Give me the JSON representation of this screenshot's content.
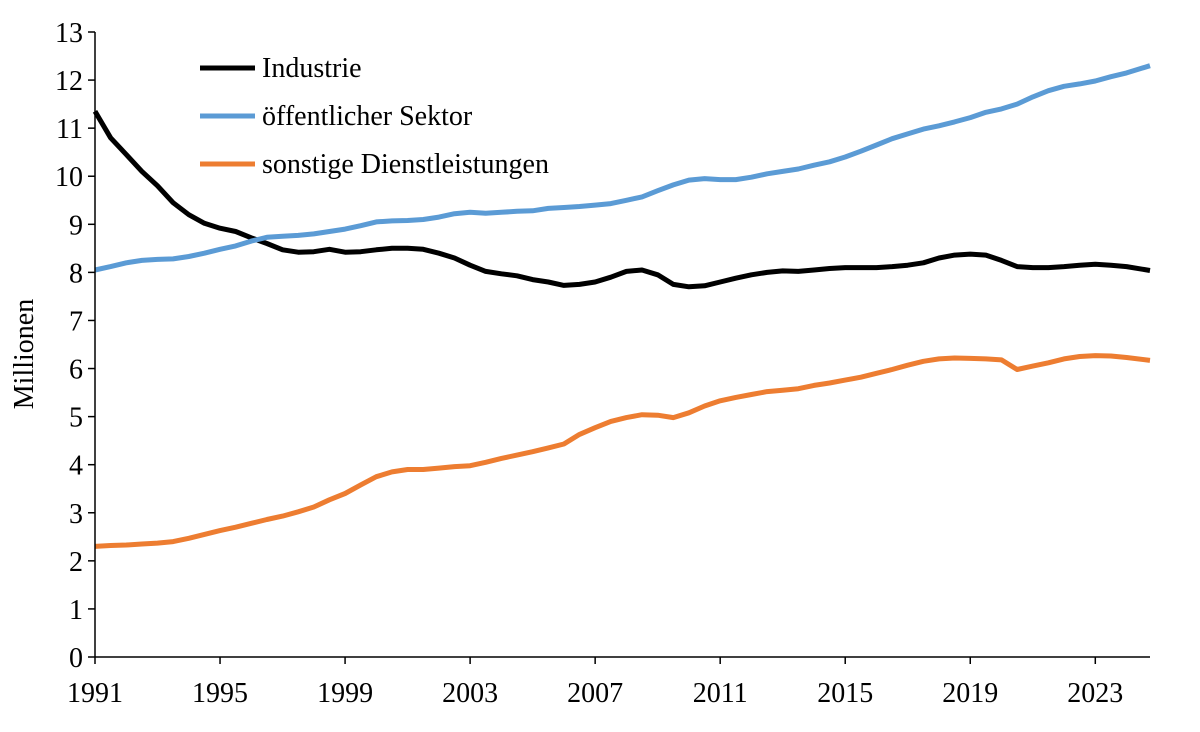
{
  "chart_data": {
    "type": "line",
    "title": "",
    "xlabel": "",
    "ylabel": "Millionen",
    "xlim": [
      1991,
      2024.75
    ],
    "ylim": [
      0,
      13
    ],
    "x_ticks": [
      1991,
      1995,
      1999,
      2003,
      2007,
      2011,
      2015,
      2019,
      2023
    ],
    "y_ticks": [
      0,
      1,
      2,
      3,
      4,
      5,
      6,
      7,
      8,
      9,
      10,
      11,
      12,
      13
    ],
    "grid": false,
    "legend_position": "top-left",
    "series": [
      {
        "name": "Industrie",
        "color": "#000000",
        "points": [
          [
            1991,
            11.35
          ],
          [
            1991.5,
            10.8
          ],
          [
            1992,
            10.45
          ],
          [
            1992.5,
            10.1
          ],
          [
            1993,
            9.8
          ],
          [
            1993.5,
            9.45
          ],
          [
            1994,
            9.2
          ],
          [
            1994.5,
            9.02
          ],
          [
            1995,
            8.92
          ],
          [
            1995.5,
            8.85
          ],
          [
            1996,
            8.72
          ],
          [
            1996.5,
            8.6
          ],
          [
            1997,
            8.47
          ],
          [
            1997.5,
            8.42
          ],
          [
            1998,
            8.43
          ],
          [
            1998.5,
            8.48
          ],
          [
            1999,
            8.42
          ],
          [
            1999.5,
            8.43
          ],
          [
            2000,
            8.47
          ],
          [
            2000.5,
            8.5
          ],
          [
            2001,
            8.5
          ],
          [
            2001.5,
            8.48
          ],
          [
            2002,
            8.4
          ],
          [
            2002.5,
            8.3
          ],
          [
            2003,
            8.15
          ],
          [
            2003.5,
            8.02
          ],
          [
            2004,
            7.97
          ],
          [
            2004.5,
            7.93
          ],
          [
            2005,
            7.85
          ],
          [
            2005.5,
            7.8
          ],
          [
            2006,
            7.73
          ],
          [
            2006.5,
            7.75
          ],
          [
            2007,
            7.8
          ],
          [
            2007.5,
            7.9
          ],
          [
            2008,
            8.02
          ],
          [
            2008.5,
            8.05
          ],
          [
            2009,
            7.95
          ],
          [
            2009.5,
            7.75
          ],
          [
            2010,
            7.7
          ],
          [
            2010.5,
            7.72
          ],
          [
            2011,
            7.8
          ],
          [
            2011.5,
            7.88
          ],
          [
            2012,
            7.95
          ],
          [
            2012.5,
            8.0
          ],
          [
            2013,
            8.03
          ],
          [
            2013.5,
            8.02
          ],
          [
            2014,
            8.05
          ],
          [
            2014.5,
            8.08
          ],
          [
            2015,
            8.1
          ],
          [
            2015.5,
            8.1
          ],
          [
            2016,
            8.1
          ],
          [
            2016.5,
            8.12
          ],
          [
            2017,
            8.15
          ],
          [
            2017.5,
            8.2
          ],
          [
            2018,
            8.3
          ],
          [
            2018.5,
            8.36
          ],
          [
            2019,
            8.38
          ],
          [
            2019.5,
            8.36
          ],
          [
            2020,
            8.25
          ],
          [
            2020.5,
            8.12
          ],
          [
            2021,
            8.1
          ],
          [
            2021.5,
            8.1
          ],
          [
            2022,
            8.12
          ],
          [
            2022.5,
            8.15
          ],
          [
            2023,
            8.17
          ],
          [
            2023.5,
            8.15
          ],
          [
            2024,
            8.12
          ],
          [
            2024.75,
            8.04
          ]
        ]
      },
      {
        "name": "öffentlicher Sektor",
        "color": "#5b9bd5",
        "points": [
          [
            1991,
            8.05
          ],
          [
            1991.5,
            8.12
          ],
          [
            1992,
            8.2
          ],
          [
            1992.5,
            8.25
          ],
          [
            1993,
            8.27
          ],
          [
            1993.5,
            8.28
          ],
          [
            1994,
            8.33
          ],
          [
            1994.5,
            8.4
          ],
          [
            1995,
            8.48
          ],
          [
            1995.5,
            8.55
          ],
          [
            1996,
            8.65
          ],
          [
            1996.5,
            8.73
          ],
          [
            1997,
            8.75
          ],
          [
            1997.5,
            8.77
          ],
          [
            1998,
            8.8
          ],
          [
            1998.5,
            8.85
          ],
          [
            1999,
            8.9
          ],
          [
            1999.5,
            8.97
          ],
          [
            2000,
            9.05
          ],
          [
            2000.5,
            9.07
          ],
          [
            2001,
            9.08
          ],
          [
            2001.5,
            9.1
          ],
          [
            2002,
            9.15
          ],
          [
            2002.5,
            9.22
          ],
          [
            2003,
            9.25
          ],
          [
            2003.5,
            9.23
          ],
          [
            2004,
            9.25
          ],
          [
            2004.5,
            9.27
          ],
          [
            2005,
            9.28
          ],
          [
            2005.5,
            9.33
          ],
          [
            2006,
            9.35
          ],
          [
            2006.5,
            9.37
          ],
          [
            2007,
            9.4
          ],
          [
            2007.5,
            9.43
          ],
          [
            2008,
            9.5
          ],
          [
            2008.5,
            9.57
          ],
          [
            2009,
            9.7
          ],
          [
            2009.5,
            9.82
          ],
          [
            2010,
            9.92
          ],
          [
            2010.5,
            9.95
          ],
          [
            2011,
            9.93
          ],
          [
            2011.5,
            9.93
          ],
          [
            2012,
            9.98
          ],
          [
            2012.5,
            10.05
          ],
          [
            2013,
            10.1
          ],
          [
            2013.5,
            10.15
          ],
          [
            2014,
            10.23
          ],
          [
            2014.5,
            10.3
          ],
          [
            2015,
            10.4
          ],
          [
            2015.5,
            10.52
          ],
          [
            2016,
            10.65
          ],
          [
            2016.5,
            10.78
          ],
          [
            2017,
            10.88
          ],
          [
            2017.5,
            10.98
          ],
          [
            2018,
            11.05
          ],
          [
            2018.5,
            11.13
          ],
          [
            2019,
            11.22
          ],
          [
            2019.5,
            11.33
          ],
          [
            2020,
            11.4
          ],
          [
            2020.5,
            11.5
          ],
          [
            2021,
            11.65
          ],
          [
            2021.5,
            11.78
          ],
          [
            2022,
            11.87
          ],
          [
            2022.5,
            11.92
          ],
          [
            2023,
            11.98
          ],
          [
            2023.5,
            12.07
          ],
          [
            2024,
            12.15
          ],
          [
            2024.75,
            12.3
          ]
        ]
      },
      {
        "name": "sonstige Dienstleistungen",
        "color": "#ed7d31",
        "points": [
          [
            1991,
            2.3
          ],
          [
            1991.5,
            2.32
          ],
          [
            1992,
            2.33
          ],
          [
            1992.5,
            2.35
          ],
          [
            1993,
            2.37
          ],
          [
            1993.5,
            2.4
          ],
          [
            1994,
            2.47
          ],
          [
            1994.5,
            2.55
          ],
          [
            1995,
            2.63
          ],
          [
            1995.5,
            2.7
          ],
          [
            1996,
            2.78
          ],
          [
            1996.5,
            2.86
          ],
          [
            1997,
            2.93
          ],
          [
            1997.5,
            3.02
          ],
          [
            1998,
            3.12
          ],
          [
            1998.5,
            3.27
          ],
          [
            1999,
            3.4
          ],
          [
            1999.5,
            3.58
          ],
          [
            2000,
            3.75
          ],
          [
            2000.5,
            3.85
          ],
          [
            2001,
            3.9
          ],
          [
            2001.5,
            3.9
          ],
          [
            2002,
            3.93
          ],
          [
            2002.5,
            3.96
          ],
          [
            2003,
            3.98
          ],
          [
            2003.5,
            4.05
          ],
          [
            2004,
            4.13
          ],
          [
            2004.5,
            4.2
          ],
          [
            2005,
            4.27
          ],
          [
            2005.5,
            4.35
          ],
          [
            2006,
            4.43
          ],
          [
            2006.5,
            4.63
          ],
          [
            2007,
            4.77
          ],
          [
            2007.5,
            4.9
          ],
          [
            2008,
            4.98
          ],
          [
            2008.5,
            5.04
          ],
          [
            2009,
            5.03
          ],
          [
            2009.5,
            4.98
          ],
          [
            2010,
            5.08
          ],
          [
            2010.5,
            5.22
          ],
          [
            2011,
            5.33
          ],
          [
            2011.5,
            5.4
          ],
          [
            2012,
            5.46
          ],
          [
            2012.5,
            5.52
          ],
          [
            2013,
            5.55
          ],
          [
            2013.5,
            5.58
          ],
          [
            2014,
            5.65
          ],
          [
            2014.5,
            5.7
          ],
          [
            2015,
            5.76
          ],
          [
            2015.5,
            5.82
          ],
          [
            2016,
            5.9
          ],
          [
            2016.5,
            5.98
          ],
          [
            2017,
            6.07
          ],
          [
            2017.5,
            6.15
          ],
          [
            2018,
            6.2
          ],
          [
            2018.5,
            6.22
          ],
          [
            2019,
            6.21
          ],
          [
            2019.5,
            6.2
          ],
          [
            2020,
            6.18
          ],
          [
            2020.5,
            5.98
          ],
          [
            2021,
            6.05
          ],
          [
            2021.5,
            6.12
          ],
          [
            2022,
            6.2
          ],
          [
            2022.5,
            6.25
          ],
          [
            2023,
            6.27
          ],
          [
            2023.5,
            6.26
          ],
          [
            2024,
            6.23
          ],
          [
            2024.75,
            6.17
          ]
        ]
      }
    ]
  }
}
